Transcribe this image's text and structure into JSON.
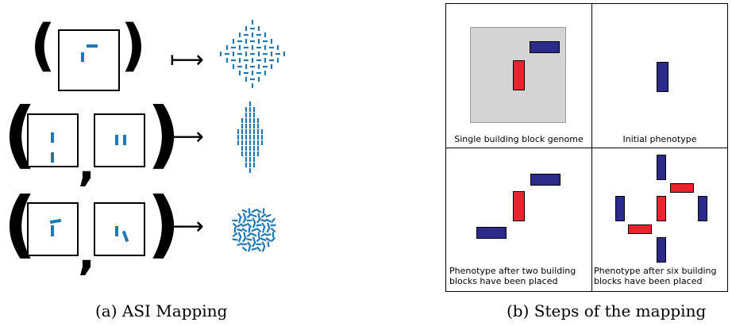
{
  "figure_a": {
    "caption": "(a) ASI Mapping",
    "maps_to_symbol": "⟼",
    "open_paren": "(",
    "close_paren": ")",
    "comma": ","
  },
  "figure_b": {
    "caption": "(b) Steps of the mapping",
    "panels": [
      {
        "label": "Single building block genome"
      },
      {
        "label": "Initial phenotype"
      },
      {
        "label": "Phenotype after two building blocks have been placed"
      },
      {
        "label": "Phenotype after six building blocks have been placed"
      }
    ],
    "colors": {
      "red": "#e8242c",
      "blue": "#2b2b8c",
      "genome_bg": "#d4d4d4",
      "accent": "#1f77b4"
    }
  }
}
